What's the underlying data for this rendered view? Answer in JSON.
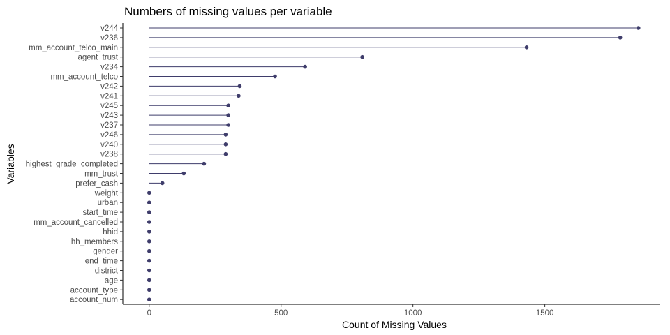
{
  "chart_data": {
    "type": "lollipop",
    "title": "Numbers of missing values per variable",
    "xlabel": "Count of Missing Values",
    "ylabel": "Variables",
    "xlim": [
      -100,
      1935
    ],
    "xticks": [
      0,
      500,
      1000,
      1500
    ],
    "grid": false,
    "color": "#3f3d6b",
    "categories": [
      "v244",
      "v236",
      "mm_account_telco_main",
      "agent_trust",
      "v234",
      "mm_account_telco",
      "v242",
      "v241",
      "v245",
      "v243",
      "v237",
      "v246",
      "v240",
      "v238",
      "highest_grade_completed",
      "mm_trust",
      "prefer_cash",
      "weight",
      "urban",
      "start_time",
      "mm_account_cancelled",
      "hhid",
      "hh_members",
      "gender",
      "end_time",
      "district",
      "age",
      "account_type",
      "account_num"
    ],
    "values": [
      1855,
      1786,
      1431,
      808,
      591,
      477,
      343,
      339,
      300,
      300,
      300,
      290,
      290,
      290,
      208,
      131,
      50,
      0,
      0,
      0,
      0,
      0,
      0,
      0,
      0,
      0,
      0,
      0,
      0
    ]
  }
}
